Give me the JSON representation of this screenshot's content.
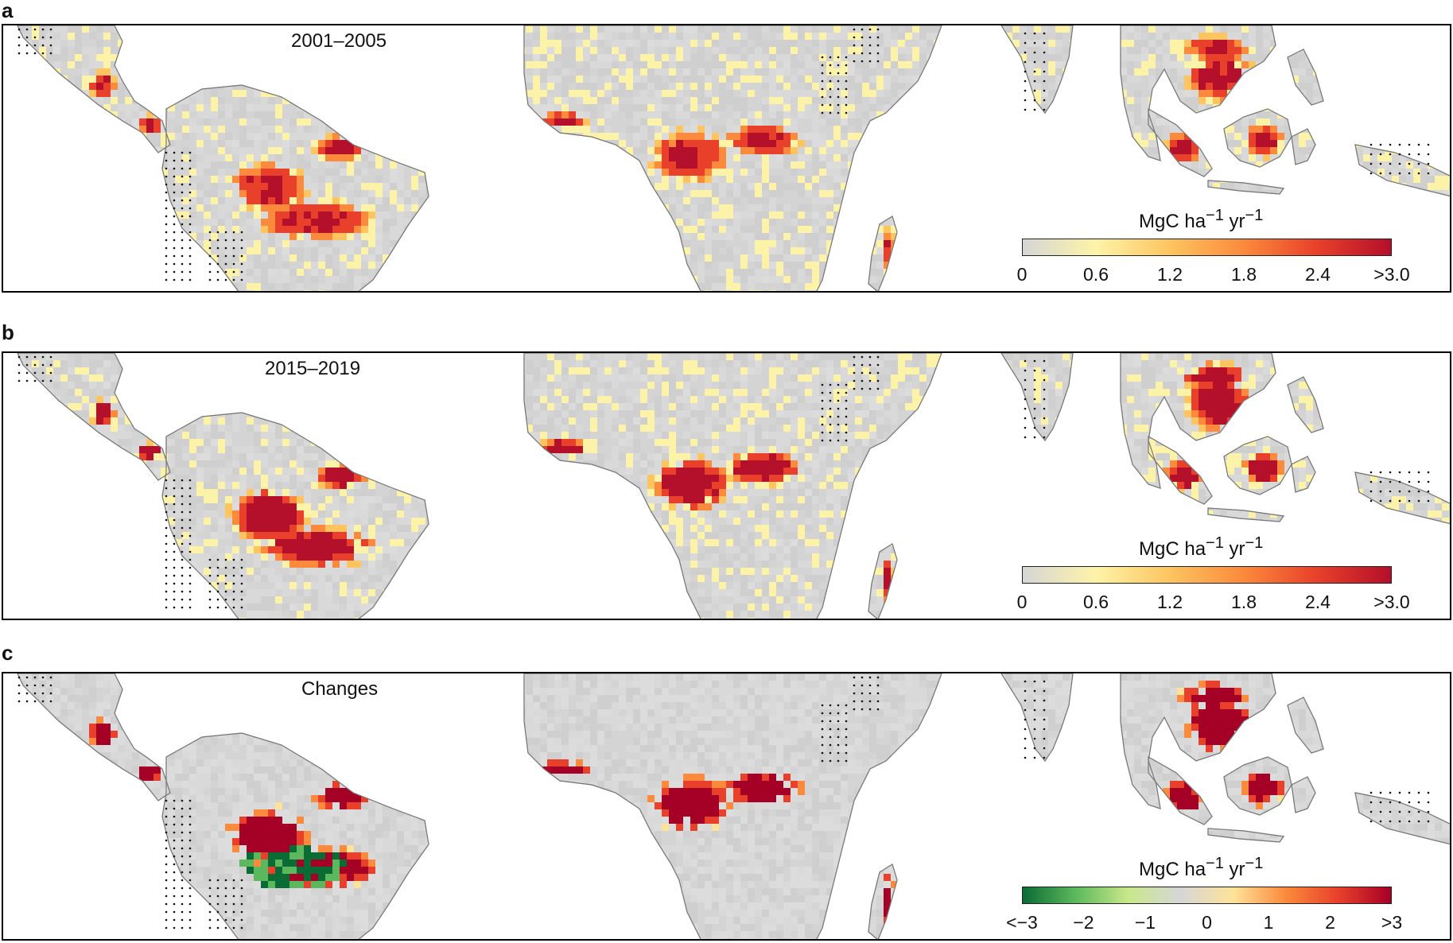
{
  "panels": [
    {
      "letter": "a",
      "period_label": "2001–2005",
      "colorbar": {
        "title_html": "MgC ha<sup>−1</sup> yr<sup>−1</sup>",
        "colors": [
          "#d6d6d6",
          "#fdf3a8",
          "#fdc45f",
          "#fb8a3c",
          "#e8402a",
          "#b40f2b"
        ],
        "tick_labels": [
          "0",
          "0.6",
          "1.2",
          "1.8",
          "2.4",
          ">3.0"
        ]
      }
    },
    {
      "letter": "b",
      "period_label": "2015–2019",
      "colorbar": {
        "title_html": "MgC ha<sup>−1</sup> yr<sup>−1</sup>",
        "colors": [
          "#d6d6d6",
          "#fdf3a8",
          "#fdc45f",
          "#fb8a3c",
          "#e8402a",
          "#b40f2b"
        ],
        "tick_labels": [
          "0",
          "0.6",
          "1.2",
          "1.8",
          "2.4",
          ">3.0"
        ]
      }
    },
    {
      "letter": "c",
      "period_label": "Changes",
      "colorbar": {
        "title_html": "MgC ha<sup>−1</sup> yr<sup>−1</sup>",
        "colors": [
          "#0a6b34",
          "#5cb85c",
          "#c8e88a",
          "#d6d6d6",
          "#fde39a",
          "#fb8a3c",
          "#e8402a",
          "#a50026"
        ],
        "tick_labels": [
          "<−3",
          "−2",
          "−1",
          "0",
          "1",
          "2",
          ">3"
        ]
      }
    }
  ]
}
